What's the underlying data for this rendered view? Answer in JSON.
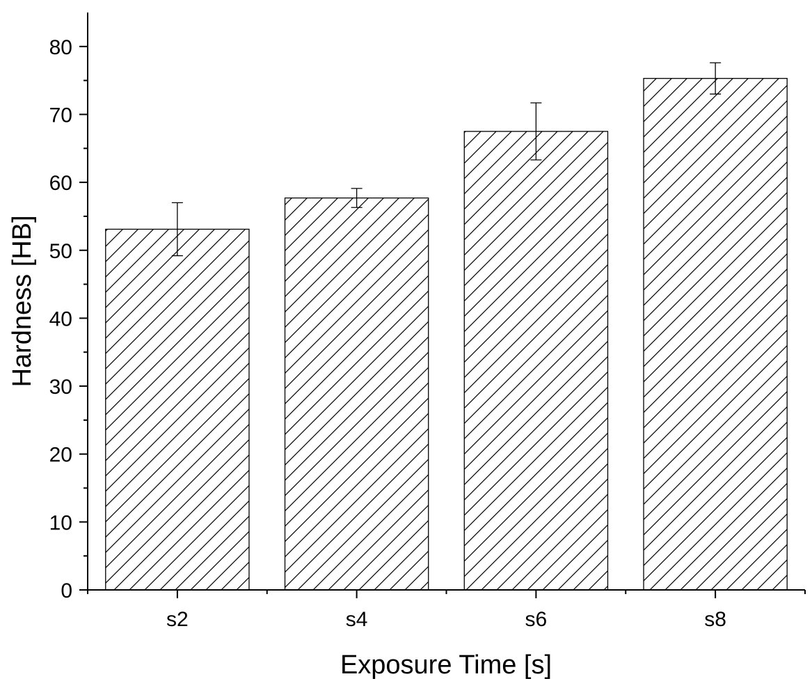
{
  "chart_data": {
    "type": "bar",
    "title": "",
    "xlabel": "Exposure Time [s]",
    "ylabel": "Hardness [HB]",
    "categories": [
      "s2",
      "s4",
      "s6",
      "s8"
    ],
    "values": [
      53.1,
      57.7,
      67.5,
      75.3
    ],
    "errors": [
      3.9,
      1.4,
      4.2,
      2.3
    ],
    "ylim": [
      0,
      85
    ],
    "yticks": [
      0,
      10,
      20,
      30,
      40,
      50,
      60,
      70,
      80
    ],
    "bar_fill": "hatched",
    "bar_color": "#000000",
    "grid": false,
    "legend": "none"
  }
}
